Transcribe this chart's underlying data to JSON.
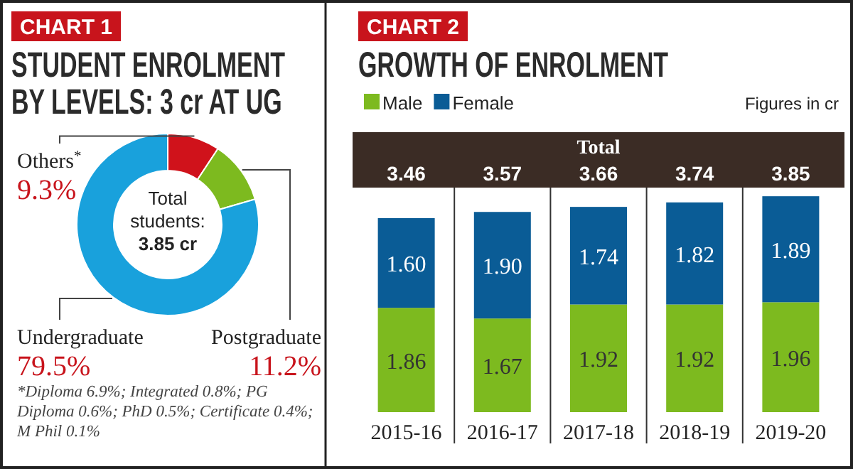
{
  "chart_data": [
    {
      "type": "donut",
      "subtitle": "CHART 1",
      "title": "STUDENT ENROLMENT BY LEVELS: 3 cr AT UG",
      "categories": [
        "Others$^{*}$",
        "Postgraduate",
        "Undergraduate"
      ],
      "values": [
        9.3,
        11.2,
        79.5
      ],
      "colors": [
        "#d0121b",
        "#7dba1f",
        "#19a1dc"
      ],
      "value_labels": [
        "9.3%",
        "11.2%",
        "79.5%"
      ],
      "annotations": [
        "Total students: 3.85 cr",
        "*Diploma 6.9%; Integrated 0.8%; PG Diploma 0.6%; PhD 0.5%; Certificate 0.4%; M Phil 0.1%"
      ]
    },
    {
      "type": "bar",
      "subtitle": "CHART 2",
      "title": "GROWTH OF ENROLMENT",
      "categories": [
        "2015-16",
        "2016-17",
        "2017-18",
        "2018-19",
        "2019-20"
      ],
      "stacked": true,
      "legend": "top left",
      "series": [
        {
          "name": "Male",
          "color": "#7dba1f",
          "values": [
            1.86,
            1.67,
            1.92,
            1.92,
            1.96
          ],
          "value_labels": [
            "1.86",
            "1.67",
            "1.92",
            "1.92",
            "1.96"
          ]
        },
        {
          "name": "Female",
          "color": "#0a5c96",
          "values": [
            1.6,
            1.9,
            1.74,
            1.82,
            1.89
          ],
          "value_labels": [
            "1.60",
            "1.90",
            "1.74",
            "1.82",
            "1.89"
          ]
        }
      ],
      "totals": [
        "3.46",
        "3.57",
        "3.66",
        "3.74",
        "3.85"
      ],
      "annotations": [
        "Total",
        "Figures in cr"
      ]
    }
  ]
}
